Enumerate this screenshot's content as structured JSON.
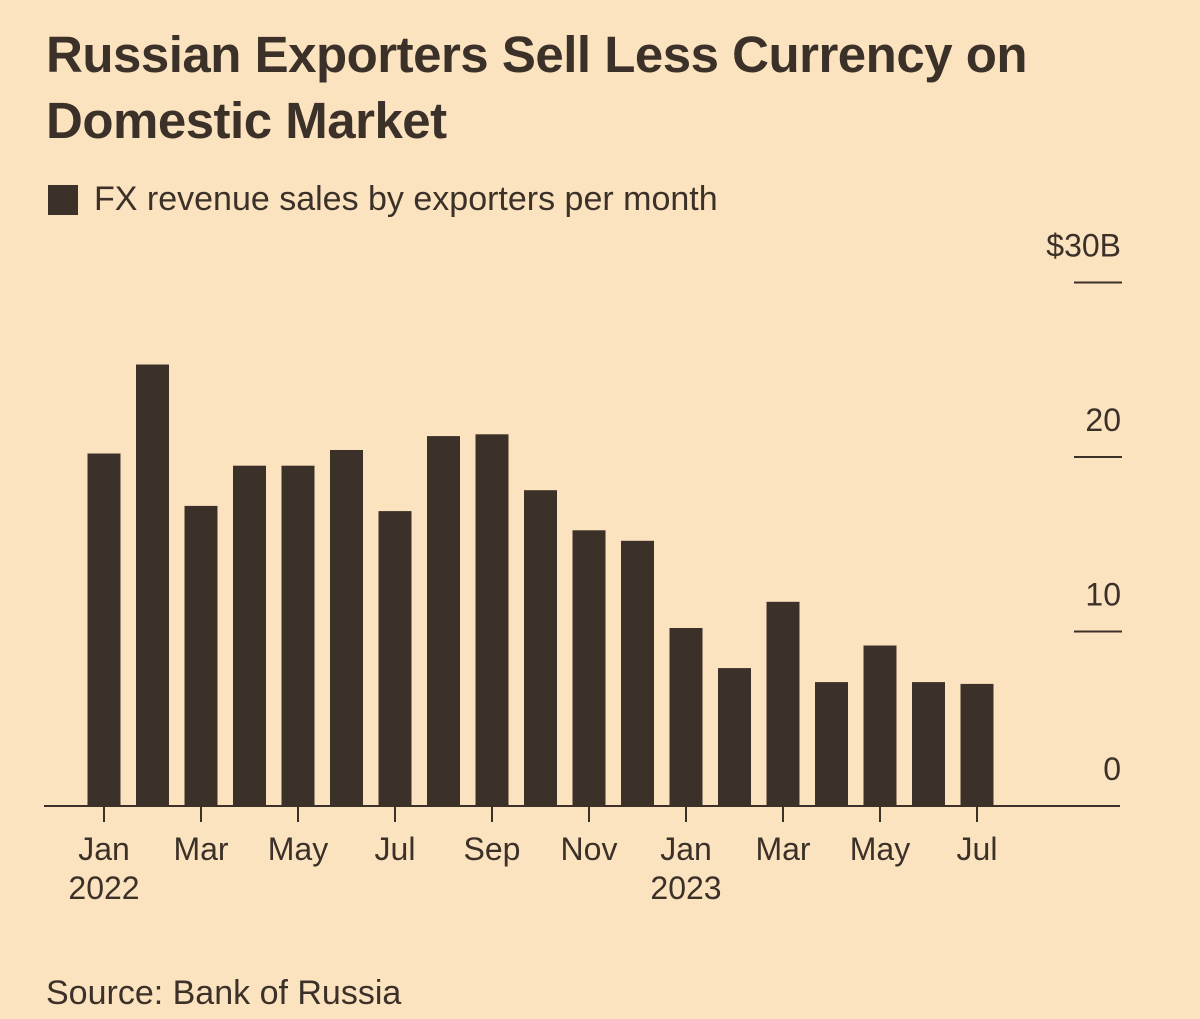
{
  "title": "Russian Exporters Sell Less Currency on Domestic Market",
  "legend_label": "FX revenue sales by exporters per month",
  "source": "Source: Bank of Russia",
  "colors": {
    "background": "#fce3c0",
    "bar": "#3b3128",
    "text": "#3b3128"
  },
  "chart_data": {
    "type": "bar",
    "categories": [
      "Jan 2022",
      "Feb 2022",
      "Mar 2022",
      "Apr 2022",
      "May 2022",
      "Jun 2022",
      "Jul 2022",
      "Aug 2022",
      "Sep 2022",
      "Oct 2022",
      "Nov 2022",
      "Dec 2022",
      "Jan 2023",
      "Feb 2023",
      "Mar 2023",
      "Apr 2023",
      "May 2023",
      "Jun 2023",
      "Jul 2023"
    ],
    "series": [
      {
        "name": "FX revenue sales by exporters per month",
        "values": [
          20.2,
          25.3,
          17.2,
          19.5,
          19.5,
          20.4,
          16.9,
          21.2,
          21.3,
          18.1,
          15.8,
          15.2,
          10.2,
          7.9,
          11.7,
          7.1,
          9.2,
          7.1,
          7.0
        ]
      }
    ],
    "ylim": [
      0,
      30
    ],
    "yticks": [
      {
        "value": 0,
        "label": "0"
      },
      {
        "value": 10,
        "label": "10"
      },
      {
        "value": 20,
        "label": "20"
      },
      {
        "value": 30,
        "label": "$30B"
      }
    ],
    "xtick_labels": [
      {
        "index": 0,
        "month": "Jan",
        "year": "2022"
      },
      {
        "index": 2,
        "month": "Mar",
        "year": ""
      },
      {
        "index": 4,
        "month": "May",
        "year": ""
      },
      {
        "index": 6,
        "month": "Jul",
        "year": ""
      },
      {
        "index": 8,
        "month": "Sep",
        "year": ""
      },
      {
        "index": 10,
        "month": "Nov",
        "year": ""
      },
      {
        "index": 12,
        "month": "Jan",
        "year": "2023"
      },
      {
        "index": 14,
        "month": "Mar",
        "year": ""
      },
      {
        "index": 16,
        "month": "May",
        "year": ""
      },
      {
        "index": 18,
        "month": "Jul",
        "year": ""
      }
    ],
    "ylabel_position": "right",
    "grid": false
  }
}
